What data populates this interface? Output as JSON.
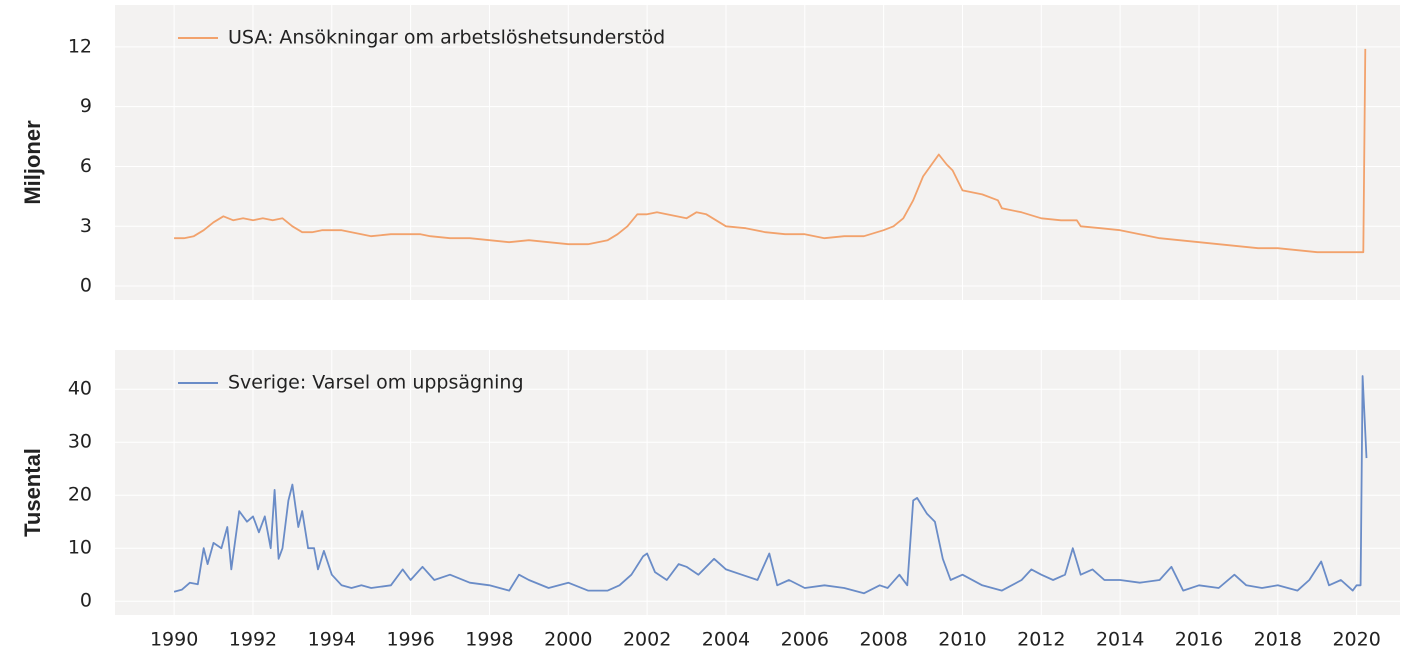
{
  "chart_data": [
    {
      "type": "line",
      "y_label": "Miljoner",
      "xlim": [
        1988.5,
        2021.1
      ],
      "ylim": [
        -0.7,
        14.1
      ],
      "yticks": [
        0,
        3,
        6,
        9,
        12
      ],
      "grid": true,
      "legend": "upper left",
      "series": [
        {
          "name": "USA: Ansökningar om arbetslöshetsunderstöd",
          "color": "#f2a26c",
          "x": [
            1990,
            1990.25,
            1990.5,
            1990.75,
            1991,
            1991.25,
            1991.5,
            1991.75,
            1992,
            1992.25,
            1992.5,
            1992.75,
            1993,
            1993.25,
            1993.5,
            1993.75,
            1994,
            1994.25,
            1994.5,
            1994.75,
            1995,
            1995.5,
            1996,
            1996.25,
            1996.5,
            1997,
            1997.5,
            1998,
            1998.5,
            1999,
            1999.5,
            2000,
            2000.5,
            2001,
            2001.25,
            2001.5,
            2001.75,
            2002,
            2002.25,
            2002.5,
            2002.75,
            2003,
            2003.25,
            2003.5,
            2003.75,
            2004,
            2004.5,
            2005,
            2005.5,
            2006,
            2006.5,
            2007,
            2007.5,
            2008,
            2008.25,
            2008.5,
            2008.75,
            2009,
            2009.4,
            2009.6,
            2009.75,
            2010,
            2010.5,
            2010.9,
            2011,
            2011.5,
            2012,
            2012.5,
            2012.9,
            2013,
            2013.5,
            2014,
            2014.5,
            2015,
            2015.5,
            2016,
            2016.5,
            2017,
            2017.5,
            2018,
            2018.5,
            2019,
            2019.5,
            2020,
            2020.17,
            2020.22
          ],
          "values": [
            2.4,
            2.4,
            2.5,
            2.8,
            3.2,
            3.5,
            3.3,
            3.4,
            3.3,
            3.4,
            3.3,
            3.4,
            3.0,
            2.7,
            2.7,
            2.8,
            2.8,
            2.8,
            2.7,
            2.6,
            2.5,
            2.6,
            2.6,
            2.6,
            2.5,
            2.4,
            2.4,
            2.3,
            2.2,
            2.3,
            2.2,
            2.1,
            2.1,
            2.3,
            2.6,
            3.0,
            3.6,
            3.6,
            3.7,
            3.6,
            3.5,
            3.4,
            3.7,
            3.6,
            3.3,
            3.0,
            2.9,
            2.7,
            2.6,
            2.6,
            2.4,
            2.5,
            2.5,
            2.8,
            3.0,
            3.4,
            4.3,
            5.5,
            6.6,
            6.1,
            5.8,
            4.8,
            4.6,
            4.3,
            3.9,
            3.7,
            3.4,
            3.3,
            3.3,
            3.0,
            2.9,
            2.8,
            2.6,
            2.4,
            2.3,
            2.2,
            2.1,
            2.0,
            1.9,
            1.9,
            1.8,
            1.7,
            1.7,
            1.7,
            1.7,
            11.9
          ]
        }
      ]
    },
    {
      "type": "line",
      "y_label": "Tusental",
      "xlim": [
        1988.5,
        2021.1
      ],
      "ylim": [
        -2.6,
        47.4
      ],
      "yticks": [
        0,
        10,
        20,
        30,
        40
      ],
      "xticks": [
        1990,
        1992,
        1994,
        1996,
        1998,
        2000,
        2002,
        2004,
        2006,
        2008,
        2010,
        2012,
        2014,
        2016,
        2018,
        2020
      ],
      "grid": true,
      "legend": "upper left",
      "series": [
        {
          "name": "Sverige: Varsel om uppsägning",
          "color": "#6a8cc7",
          "x": [
            1990,
            1990.2,
            1990.4,
            1990.6,
            1990.75,
            1990.85,
            1991,
            1991.2,
            1991.35,
            1991.45,
            1991.65,
            1991.85,
            1992,
            1992.15,
            1992.3,
            1992.45,
            1992.55,
            1992.65,
            1992.75,
            1992.9,
            1993,
            1993.15,
            1993.25,
            1993.4,
            1993.55,
            1993.65,
            1993.8,
            1994,
            1994.25,
            1994.5,
            1994.75,
            1995,
            1995.5,
            1995.8,
            1996,
            1996.3,
            1996.6,
            1997,
            1997.5,
            1998,
            1998.5,
            1998.75,
            1999,
            1999.5,
            2000,
            2000.5,
            2001,
            2001.3,
            2001.6,
            2001.9,
            2002,
            2002.2,
            2002.5,
            2002.8,
            2003,
            2003.3,
            2003.7,
            2004,
            2004.4,
            2004.8,
            2005.1,
            2005.3,
            2005.6,
            2006,
            2006.5,
            2007,
            2007.5,
            2007.9,
            2008.1,
            2008.4,
            2008.6,
            2008.75,
            2008.85,
            2009.1,
            2009.3,
            2009.5,
            2009.7,
            2010,
            2010.5,
            2011,
            2011.5,
            2011.75,
            2012,
            2012.3,
            2012.6,
            2012.8,
            2013,
            2013.3,
            2013.6,
            2014,
            2014.5,
            2015,
            2015.3,
            2015.6,
            2016,
            2016.5,
            2016.9,
            2017.2,
            2017.6,
            2018,
            2018.5,
            2018.8,
            2019.1,
            2019.3,
            2019.6,
            2019.9,
            2020,
            2020.1,
            2020.15,
            2020.25
          ],
          "values": [
            1.8,
            2.2,
            3.5,
            3.2,
            10,
            7,
            11,
            10,
            14,
            6,
            17,
            15,
            16,
            13,
            16,
            10,
            21,
            8,
            10,
            19,
            22,
            14,
            17,
            10,
            10,
            6,
            9.5,
            5,
            3,
            2.5,
            3,
            2.5,
            3,
            6,
            4,
            6.5,
            4,
            5,
            3.5,
            3,
            2,
            5,
            4,
            2.5,
            3.5,
            2,
            2,
            3,
            5,
            8.5,
            9,
            5.5,
            4,
            7,
            6.5,
            5,
            8,
            6,
            5,
            4,
            9,
            3,
            4,
            2.5,
            3,
            2.5,
            1.5,
            3,
            2.5,
            5,
            3,
            19,
            19.5,
            16.5,
            15,
            8,
            4,
            5,
            3,
            2,
            4,
            6,
            5,
            4,
            5,
            10,
            5,
            6,
            4,
            4,
            3.5,
            4,
            6.5,
            2,
            3,
            2.5,
            5,
            3,
            2.5,
            3,
            2,
            4,
            7.5,
            3,
            4,
            2,
            3,
            3,
            42.5,
            27
          ]
        }
      ]
    }
  ]
}
